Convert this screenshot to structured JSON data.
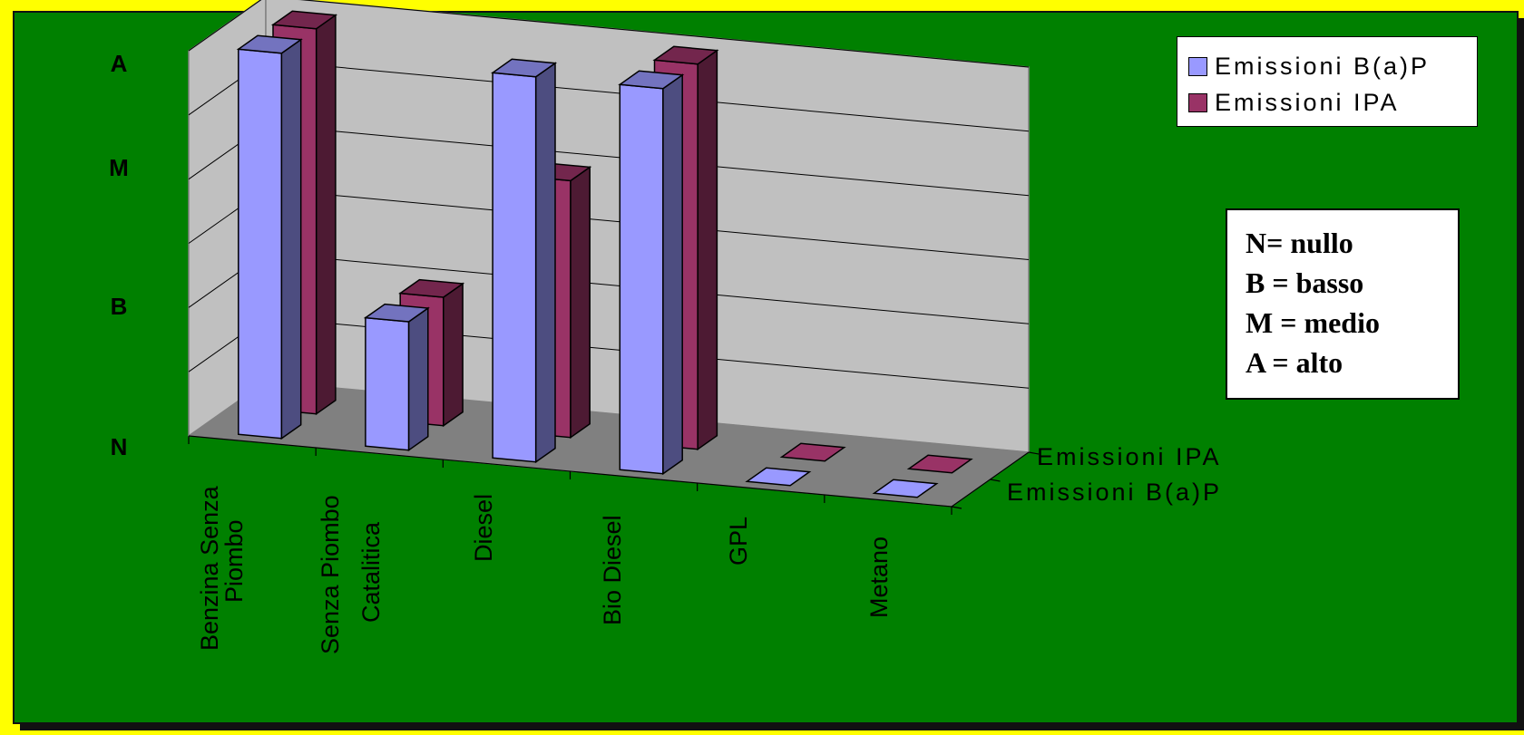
{
  "chart_data": {
    "type": "bar",
    "subtype": "3d-clustered-depth",
    "categories": [
      "Benzina Senza Piombo",
      "Senza Piombo Catalitica",
      "Diesel",
      "Bio Diesel",
      "GPL",
      "Metano"
    ],
    "category_lines": [
      [
        "Benzina Senza",
        "Piombo"
      ],
      [
        "Senza Piombo",
        "Catalitica"
      ],
      [
        "Diesel"
      ],
      [
        "Bio Diesel"
      ],
      [
        "GPL"
      ],
      [
        "Metano"
      ]
    ],
    "y_ticks": [
      "N",
      "B",
      "M",
      "A"
    ],
    "ylim": [
      0,
      3
    ],
    "series": [
      {
        "name": "Emissioni B(a)P",
        "values": [
          3.0,
          1.0,
          3.0,
          3.0,
          0,
          0
        ],
        "color": "#9999ff"
      },
      {
        "name": "Emissioni IPA",
        "values": [
          3.0,
          1.0,
          2.0,
          3.0,
          0,
          0
        ],
        "color": "#993366"
      }
    ],
    "depth_labels": [
      "Emissioni IPA",
      "Emissioni B(a)P"
    ],
    "legend_position": "top-right",
    "grid": true
  },
  "colors": {
    "background": "#008000",
    "frame": "#ffff00",
    "wall": "#c0c0c0",
    "floor": "#808080",
    "bap": "#9999ff",
    "ipa": "#993366"
  },
  "note": {
    "lines": [
      "N= nullo",
      "B = basso",
      "M = medio",
      "A = alto"
    ]
  }
}
